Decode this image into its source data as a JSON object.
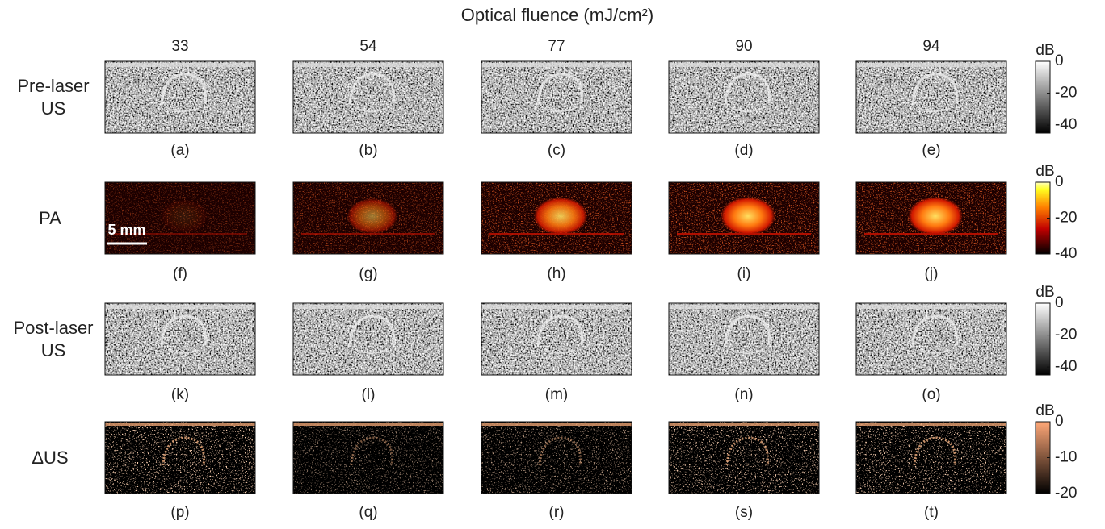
{
  "title": "Optical fluence (mJ/cm²)",
  "columns": [
    "33",
    "54",
    "77",
    "90",
    "94"
  ],
  "scale_bar": "5 mm",
  "rows": [
    {
      "label": "Pre-laser US",
      "colormap": "gray",
      "panels": [
        "(a)",
        "(b)",
        "(c)",
        "(d)",
        "(e)"
      ],
      "colorbar": {
        "unit": "dB",
        "lim": [
          -45,
          0
        ],
        "ticks": [
          0,
          -20,
          -40
        ]
      }
    },
    {
      "label": "PA",
      "colormap": "hot",
      "panels": [
        "(f)",
        "(g)",
        "(h)",
        "(i)",
        "(j)"
      ],
      "colorbar": {
        "unit": "dB",
        "lim": [
          -40,
          0
        ],
        "ticks": [
          0,
          -20,
          -40
        ]
      }
    },
    {
      "label": "Post-laser US",
      "colormap": "gray",
      "panels": [
        "(k)",
        "(l)",
        "(m)",
        "(n)",
        "(o)"
      ],
      "colorbar": {
        "unit": "dB",
        "lim": [
          -45,
          0
        ],
        "ticks": [
          0,
          -20,
          -40
        ]
      }
    },
    {
      "label": "ΔUS",
      "colormap": "copper",
      "panels": [
        "(p)",
        "(q)",
        "(r)",
        "(s)",
        "(t)"
      ],
      "colorbar": {
        "unit": "dB",
        "lim": [
          -20,
          0
        ],
        "ticks": [
          0,
          -10,
          -20
        ]
      }
    }
  ]
}
